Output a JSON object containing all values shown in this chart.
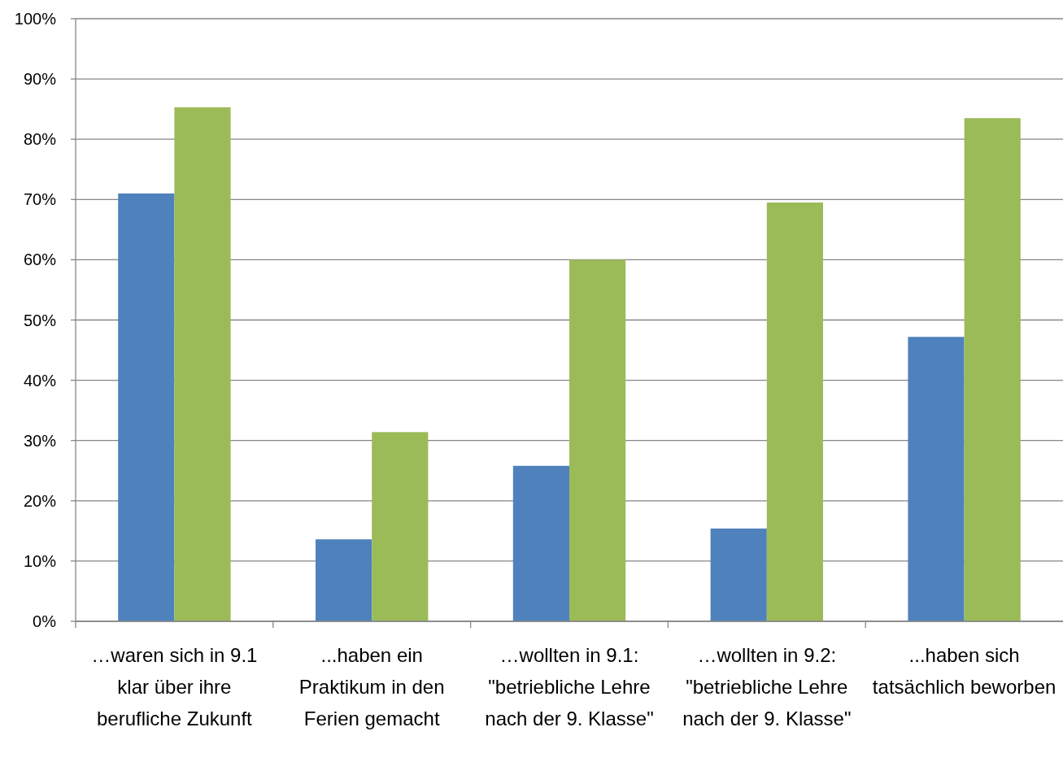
{
  "chart_data": {
    "type": "bar",
    "categories": [
      "…waren sich in 9.1 klar über ihre berufliche Zukunft",
      "...haben ein Praktikum in den Ferien gemacht",
      "…wollten in 9.1: \"betriebliche Lehre nach der 9. Klasse\"",
      "…wollten in 9.2: \"betriebliche Lehre nach der 9. Klasse\"",
      "...haben sich tatsächlich beworben"
    ],
    "series": [
      {
        "color": "#4f81bd",
        "values": [
          71,
          13.6,
          25.8,
          15.4,
          47.2
        ]
      },
      {
        "color": "#9bbb59",
        "values": [
          85.3,
          31.4,
          60,
          69.5,
          83.5
        ]
      }
    ],
    "ylim": [
      0,
      100
    ],
    "yticks": [
      {
        "value": 0,
        "label": "0%"
      },
      {
        "value": 10,
        "label": "10%"
      },
      {
        "value": 20,
        "label": "20%"
      },
      {
        "value": 30,
        "label": "30%"
      },
      {
        "value": 40,
        "label": "40%"
      },
      {
        "value": 50,
        "label": "50%"
      },
      {
        "value": 60,
        "label": "60%"
      },
      {
        "value": 70,
        "label": "70%"
      },
      {
        "value": 80,
        "label": "80%"
      },
      {
        "value": 90,
        "label": "90%"
      },
      {
        "value": 100,
        "label": "100%"
      }
    ],
    "grid": "y"
  }
}
